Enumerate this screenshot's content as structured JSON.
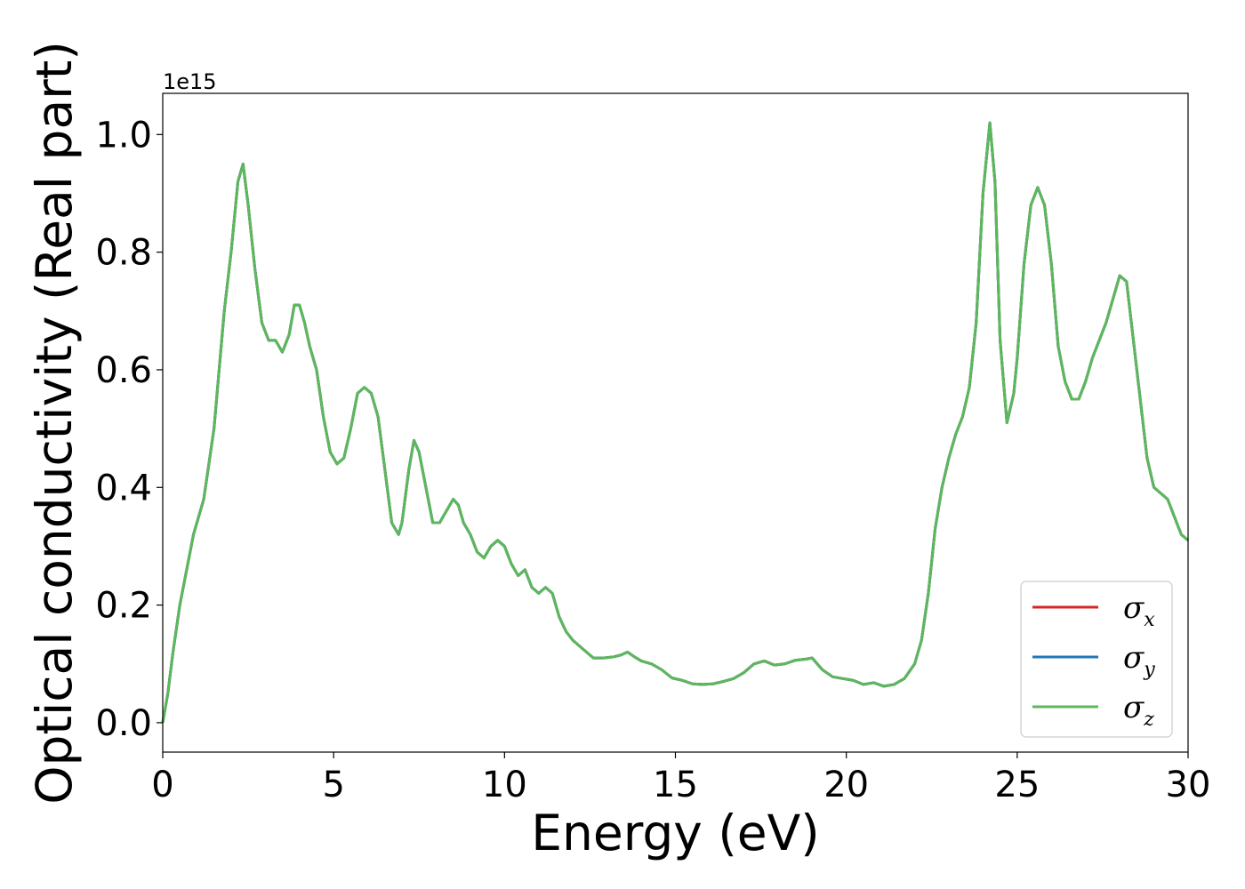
{
  "chart_data": {
    "type": "line",
    "title": "",
    "xlabel": "Energy (eV)",
    "ylabel": "Optical conductivity (Real part)",
    "y_offset_text": "1e15",
    "xlim": [
      0,
      30
    ],
    "ylim": [
      -0.05,
      1.07
    ],
    "xticks": [
      0,
      5,
      10,
      15,
      20,
      25,
      30
    ],
    "yticks": [
      0.0,
      0.2,
      0.4,
      0.6,
      0.8,
      1.0
    ],
    "xtick_labels": [
      "0",
      "5",
      "10",
      "15",
      "20",
      "25",
      "30"
    ],
    "ytick_labels": [
      "0.0",
      "0.2",
      "0.4",
      "0.6",
      "0.8",
      "1.0"
    ],
    "grid": false,
    "legend_position": "lower-right",
    "x": [
      0,
      0.15,
      0.3,
      0.5,
      0.7,
      0.9,
      1.2,
      1.5,
      1.8,
      2.0,
      2.2,
      2.35,
      2.5,
      2.7,
      2.9,
      3.1,
      3.3,
      3.5,
      3.7,
      3.85,
      4.0,
      4.15,
      4.3,
      4.5,
      4.7,
      4.9,
      5.1,
      5.3,
      5.5,
      5.7,
      5.9,
      6.1,
      6.3,
      6.5,
      6.7,
      6.9,
      7.0,
      7.2,
      7.35,
      7.5,
      7.7,
      7.9,
      8.1,
      8.3,
      8.5,
      8.65,
      8.8,
      9.0,
      9.2,
      9.4,
      9.6,
      9.8,
      10.0,
      10.2,
      10.4,
      10.6,
      10.8,
      11.0,
      11.2,
      11.4,
      11.6,
      11.8,
      12.0,
      12.3,
      12.6,
      12.9,
      13.2,
      13.4,
      13.6,
      13.8,
      14.0,
      14.3,
      14.6,
      14.9,
      15.2,
      15.5,
      15.8,
      16.1,
      16.4,
      16.7,
      17.0,
      17.3,
      17.6,
      17.9,
      18.2,
      18.5,
      18.8,
      19.0,
      19.3,
      19.6,
      19.9,
      20.2,
      20.5,
      20.8,
      21.1,
      21.4,
      21.7,
      22.0,
      22.2,
      22.4,
      22.6,
      22.8,
      23.0,
      23.2,
      23.4,
      23.6,
      23.8,
      24.0,
      24.2,
      24.35,
      24.5,
      24.7,
      24.9,
      25.0,
      25.2,
      25.4,
      25.6,
      25.8,
      26.0,
      26.2,
      26.4,
      26.6,
      26.8,
      27.0,
      27.2,
      27.4,
      27.6,
      27.8,
      28.0,
      28.2,
      28.4,
      28.6,
      28.8,
      29.0,
      29.2,
      29.4,
      29.6,
      29.8,
      30.0
    ],
    "series": [
      {
        "name": "σ_x",
        "color": "#d62728",
        "values": [
          0.0,
          0.05,
          0.12,
          0.2,
          0.26,
          0.32,
          0.38,
          0.5,
          0.7,
          0.8,
          0.92,
          0.95,
          0.88,
          0.77,
          0.68,
          0.65,
          0.65,
          0.63,
          0.66,
          0.71,
          0.71,
          0.68,
          0.64,
          0.6,
          0.52,
          0.46,
          0.44,
          0.45,
          0.5,
          0.56,
          0.57,
          0.56,
          0.52,
          0.43,
          0.34,
          0.32,
          0.34,
          0.43,
          0.48,
          0.46,
          0.4,
          0.34,
          0.34,
          0.36,
          0.38,
          0.37,
          0.34,
          0.32,
          0.29,
          0.28,
          0.3,
          0.31,
          0.3,
          0.27,
          0.25,
          0.26,
          0.23,
          0.22,
          0.23,
          0.22,
          0.18,
          0.155,
          0.14,
          0.125,
          0.11,
          0.11,
          0.112,
          0.115,
          0.12,
          0.112,
          0.105,
          0.1,
          0.09,
          0.076,
          0.072,
          0.066,
          0.065,
          0.066,
          0.07,
          0.075,
          0.085,
          0.1,
          0.105,
          0.098,
          0.1,
          0.106,
          0.108,
          0.11,
          0.09,
          0.078,
          0.075,
          0.072,
          0.065,
          0.068,
          0.062,
          0.065,
          0.075,
          0.1,
          0.14,
          0.22,
          0.33,
          0.4,
          0.45,
          0.49,
          0.52,
          0.57,
          0.68,
          0.9,
          1.02,
          0.92,
          0.65,
          0.51,
          0.56,
          0.62,
          0.78,
          0.88,
          0.91,
          0.88,
          0.78,
          0.64,
          0.58,
          0.55,
          0.55,
          0.58,
          0.62,
          0.65,
          0.68,
          0.72,
          0.76,
          0.75,
          0.65,
          0.55,
          0.45,
          0.4,
          0.39,
          0.38,
          0.35,
          0.32,
          0.31
        ]
      },
      {
        "name": "σ_y",
        "color": "#1f77b4",
        "values": [
          0.0,
          0.05,
          0.12,
          0.2,
          0.26,
          0.32,
          0.38,
          0.5,
          0.7,
          0.8,
          0.92,
          0.95,
          0.88,
          0.77,
          0.68,
          0.65,
          0.65,
          0.63,
          0.66,
          0.71,
          0.71,
          0.68,
          0.64,
          0.6,
          0.52,
          0.46,
          0.44,
          0.45,
          0.5,
          0.56,
          0.57,
          0.56,
          0.52,
          0.43,
          0.34,
          0.32,
          0.34,
          0.43,
          0.48,
          0.46,
          0.4,
          0.34,
          0.34,
          0.36,
          0.38,
          0.37,
          0.34,
          0.32,
          0.29,
          0.28,
          0.3,
          0.31,
          0.3,
          0.27,
          0.25,
          0.26,
          0.23,
          0.22,
          0.23,
          0.22,
          0.18,
          0.155,
          0.14,
          0.125,
          0.11,
          0.11,
          0.112,
          0.115,
          0.12,
          0.112,
          0.105,
          0.1,
          0.09,
          0.076,
          0.072,
          0.066,
          0.065,
          0.066,
          0.07,
          0.075,
          0.085,
          0.1,
          0.105,
          0.098,
          0.1,
          0.106,
          0.108,
          0.11,
          0.09,
          0.078,
          0.075,
          0.072,
          0.065,
          0.068,
          0.062,
          0.065,
          0.075,
          0.1,
          0.14,
          0.22,
          0.33,
          0.4,
          0.45,
          0.49,
          0.52,
          0.57,
          0.68,
          0.9,
          1.02,
          0.92,
          0.65,
          0.51,
          0.56,
          0.62,
          0.78,
          0.88,
          0.91,
          0.88,
          0.78,
          0.64,
          0.58,
          0.55,
          0.55,
          0.58,
          0.62,
          0.65,
          0.68,
          0.72,
          0.76,
          0.75,
          0.65,
          0.55,
          0.45,
          0.4,
          0.39,
          0.38,
          0.35,
          0.32,
          0.31
        ]
      },
      {
        "name": "σ_z",
        "color": "#5cb85c",
        "values": [
          0.0,
          0.05,
          0.12,
          0.2,
          0.26,
          0.32,
          0.38,
          0.5,
          0.7,
          0.8,
          0.92,
          0.95,
          0.88,
          0.77,
          0.68,
          0.65,
          0.65,
          0.63,
          0.66,
          0.71,
          0.71,
          0.68,
          0.64,
          0.6,
          0.52,
          0.46,
          0.44,
          0.45,
          0.5,
          0.56,
          0.57,
          0.56,
          0.52,
          0.43,
          0.34,
          0.32,
          0.34,
          0.43,
          0.48,
          0.46,
          0.4,
          0.34,
          0.34,
          0.36,
          0.38,
          0.37,
          0.34,
          0.32,
          0.29,
          0.28,
          0.3,
          0.31,
          0.3,
          0.27,
          0.25,
          0.26,
          0.23,
          0.22,
          0.23,
          0.22,
          0.18,
          0.155,
          0.14,
          0.125,
          0.11,
          0.11,
          0.112,
          0.115,
          0.12,
          0.112,
          0.105,
          0.1,
          0.09,
          0.076,
          0.072,
          0.066,
          0.065,
          0.066,
          0.07,
          0.075,
          0.085,
          0.1,
          0.105,
          0.098,
          0.1,
          0.106,
          0.108,
          0.11,
          0.09,
          0.078,
          0.075,
          0.072,
          0.065,
          0.068,
          0.062,
          0.065,
          0.075,
          0.1,
          0.14,
          0.22,
          0.33,
          0.4,
          0.45,
          0.49,
          0.52,
          0.57,
          0.68,
          0.9,
          1.02,
          0.92,
          0.65,
          0.51,
          0.56,
          0.62,
          0.78,
          0.88,
          0.91,
          0.88,
          0.78,
          0.64,
          0.58,
          0.55,
          0.55,
          0.58,
          0.62,
          0.65,
          0.68,
          0.72,
          0.76,
          0.75,
          0.65,
          0.55,
          0.45,
          0.4,
          0.39,
          0.38,
          0.35,
          0.32,
          0.31
        ]
      }
    ]
  }
}
